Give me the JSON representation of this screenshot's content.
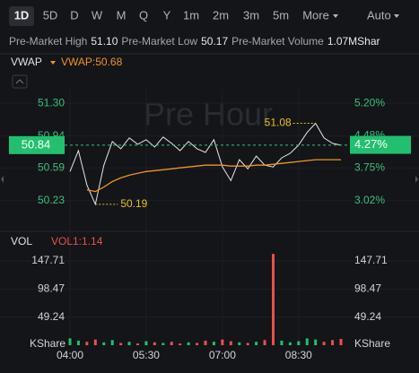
{
  "toolbar": {
    "tabs": [
      "1D",
      "5D",
      "D",
      "W",
      "M",
      "Q",
      "Y",
      "1m",
      "2m",
      "3m",
      "5m",
      "More"
    ],
    "active": 0,
    "adjust": "Auto"
  },
  "stats": [
    {
      "label": "Pre-Market High",
      "value": "51.10"
    },
    {
      "label": "Pre-Market Low",
      "value": "50.17"
    },
    {
      "label": "Pre-Market Volume",
      "value": "1.07MShar"
    }
  ],
  "chart_data": [
    {
      "type": "line",
      "title": "VWAP",
      "legend": "VWAP:50.68",
      "watermark": "Pre Hour",
      "series": [
        {
          "color": "#e6e6e6",
          "values": [
            50.55,
            50.78,
            50.4,
            50.19,
            50.62,
            50.88,
            50.8,
            50.92,
            50.85,
            50.9,
            50.82,
            50.93,
            50.86,
            50.78,
            50.88,
            50.8,
            50.76,
            50.9,
            50.6,
            50.45,
            50.68,
            50.58,
            50.72,
            50.62,
            50.6,
            50.7,
            50.75,
            50.84,
            50.98,
            51.08,
            50.92,
            50.86,
            50.84
          ]
        },
        {
          "color": "#f0961e",
          "values": [
            null,
            null,
            50.35,
            50.33,
            50.38,
            50.44,
            50.48,
            50.51,
            50.53,
            50.55,
            50.56,
            50.57,
            50.58,
            50.59,
            50.6,
            50.61,
            50.62,
            50.62,
            50.62,
            50.61,
            50.61,
            50.61,
            50.62,
            50.62,
            50.63,
            50.64,
            50.65,
            50.66,
            50.67,
            50.68,
            50.68,
            50.68,
            50.68
          ]
        }
      ],
      "ylim": [
        50.07,
        51.45
      ],
      "yticks": [
        {
          "value": 51.3,
          "label": "51.30"
        },
        50.94,
        50.59,
        50.23
      ],
      "y2lim": [
        2.69,
        5.51
      ],
      "y2ticks": [
        {
          "value": 5.2,
          "label": "5.20%"
        },
        {
          "value": 4.48,
          "label": "4.48%"
        },
        {
          "value": 3.75,
          "label": "3.75%"
        },
        {
          "value": 3.02,
          "label": "3.02%"
        }
      ],
      "last_price": 50.84,
      "last_change": {
        "value": 4.27,
        "label": "4.27%"
      },
      "high_label": 51.08,
      "low_label": 50.19,
      "grid": true
    },
    {
      "type": "bar",
      "title": "VOL",
      "legend": "VOL1:1.14",
      "unit": "KShare",
      "categories": [
        "04:00",
        null,
        null,
        null,
        null,
        null,
        null,
        null,
        null,
        "05:30",
        null,
        null,
        null,
        null,
        null,
        null,
        null,
        null,
        "07:00",
        null,
        null,
        null,
        null,
        null,
        null,
        null,
        null,
        "08:30",
        null,
        null,
        null,
        null,
        null
      ],
      "values": [
        12,
        8,
        6,
        10,
        5,
        9,
        4,
        6,
        3,
        7,
        5,
        4,
        6,
        3,
        5,
        4,
        8,
        6,
        10,
        7,
        5,
        4,
        6,
        9,
        160,
        8,
        5,
        7,
        12,
        10,
        6,
        9,
        11
      ],
      "up_color": "#22c06e",
      "down_color": "#e8524a",
      "ylim": [
        0,
        165
      ],
      "yticks": [
        147.71,
        98.47,
        49.24
      ],
      "grid": true
    }
  ]
}
